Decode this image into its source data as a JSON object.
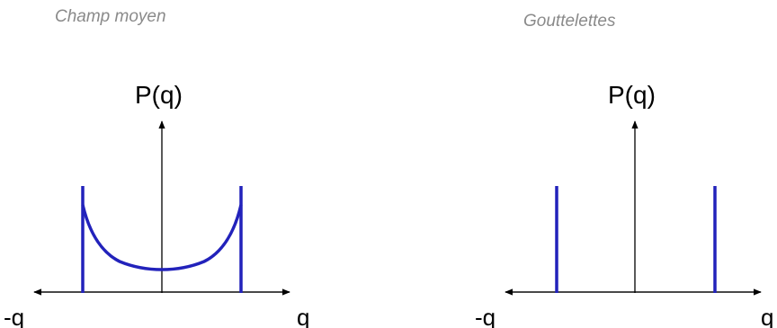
{
  "panels": [
    {
      "title": "Champ moyen",
      "ylabel": "P(q)",
      "xlabel_right": "q",
      "xlabel_left": "-q",
      "curve": "U-shaped distribution between -q and q",
      "curve_color": "#2222bb"
    },
    {
      "title": "Gouttelettes",
      "ylabel": "P(q)",
      "xlabel_right": "q",
      "xlabel_left": "-q",
      "curve": "two delta peaks at -q and q",
      "curve_color": "#2222bb"
    }
  ]
}
